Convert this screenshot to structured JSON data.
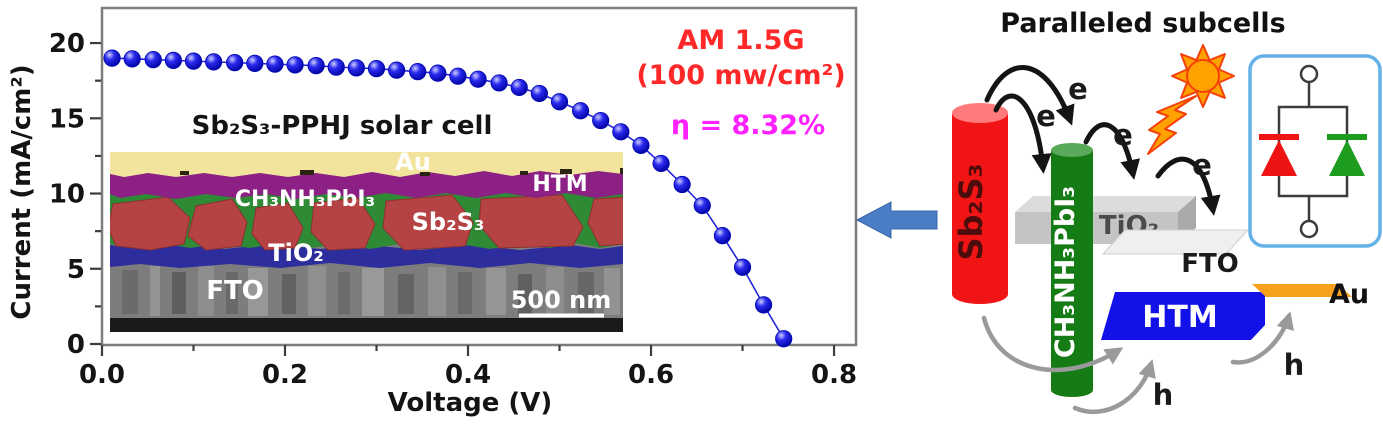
{
  "figure": {
    "chart": {
      "y_axis_title": "Current (mA/cm²)",
      "x_axis_title": "Voltage (V)",
      "inset_title": "Sb₂S₃-PPHJ solar cell",
      "annotation_line1": "AM 1.5G",
      "annotation_line2": "(100 mw/cm²)",
      "annotation_eta": "η = 8.32%"
    },
    "inset": {
      "au": "Au",
      "htm": "HTM",
      "perovskite": "CH₃NH₃PbI₃",
      "sb2s3": "Sb₂S₃",
      "tio2": "TiO₂",
      "fto": "FTO",
      "scalebar": "500 nm"
    },
    "diagram": {
      "title": "Paralleled subcells",
      "sb2s3": "Sb₂S₃",
      "perovskite": "CH₃NH₃PbI₃",
      "tio2": "TiO₂",
      "fto": "FTO",
      "htm": "HTM",
      "au": "Au",
      "electron": "e",
      "hole": "h"
    },
    "colors": {
      "annotation_red": "#ff2828",
      "eta_magenta": "#ff22ff",
      "point_blue": "#2222dd",
      "sb2s3_red": "#f01414",
      "sb2s3_top": "#ff7a7a",
      "perovskite_green": "#157c15",
      "perovskite_top": "#5aa85a",
      "tio2_gray": "#c4c4c4",
      "fto_gray": "#efefef",
      "htm_blue": "#1212e8",
      "au_orange": "#f6a01c",
      "diode_red": "#ee1414",
      "diode_green": "#1e9c1e",
      "circuit_border": "#64b1e8",
      "sun_orange": "#ffa200",
      "arrow_blue": "#4a7dc4"
    }
  },
  "chart_data": {
    "type": "scatter",
    "title": "Sb₂S₃-PPHJ solar cell (J-V curve)",
    "xlabel": "Voltage (V)",
    "ylabel": "Current (mA/cm²)",
    "xlim": [
      0,
      0.824
    ],
    "ylim": [
      0,
      22.33
    ],
    "grid": false,
    "x_ticks": [
      0.0,
      0.2,
      0.4,
      0.6,
      0.8
    ],
    "x_tick_labels": [
      "0.0",
      "0.2",
      "0.4",
      "0.6",
      "0.8"
    ],
    "x_minor_ticks": [
      0.1,
      0.3,
      0.5,
      0.7
    ],
    "y_ticks": [
      0,
      5,
      10,
      15,
      20
    ],
    "y_tick_labels": [
      "0",
      "5",
      "10",
      "15",
      "20"
    ],
    "y_minor_ticks": [
      2.5,
      7.5,
      12.5,
      17.5
    ],
    "annotations": [
      "AM 1.5G",
      "(100 mw/cm²)",
      "η = 8.32%"
    ],
    "series": [
      {
        "name": "J-V curve",
        "x": [
          0.011,
          0.033,
          0.056,
          0.078,
          0.1,
          0.122,
          0.145,
          0.167,
          0.189,
          0.211,
          0.234,
          0.256,
          0.278,
          0.3,
          0.322,
          0.345,
          0.367,
          0.389,
          0.411,
          0.434,
          0.456,
          0.478,
          0.5,
          0.523,
          0.545,
          0.567,
          0.589,
          0.611,
          0.634,
          0.656,
          0.678,
          0.7,
          0.723,
          0.745
        ],
        "y": [
          19.0,
          18.95,
          18.9,
          18.85,
          18.8,
          18.75,
          18.7,
          18.65,
          18.6,
          18.55,
          18.5,
          18.4,
          18.35,
          18.3,
          18.2,
          18.1,
          18.0,
          17.8,
          17.6,
          17.35,
          17.05,
          16.65,
          16.1,
          15.5,
          14.85,
          14.1,
          13.2,
          12.0,
          10.6,
          9.2,
          7.2,
          5.1,
          2.6,
          0.35
        ]
      }
    ]
  }
}
